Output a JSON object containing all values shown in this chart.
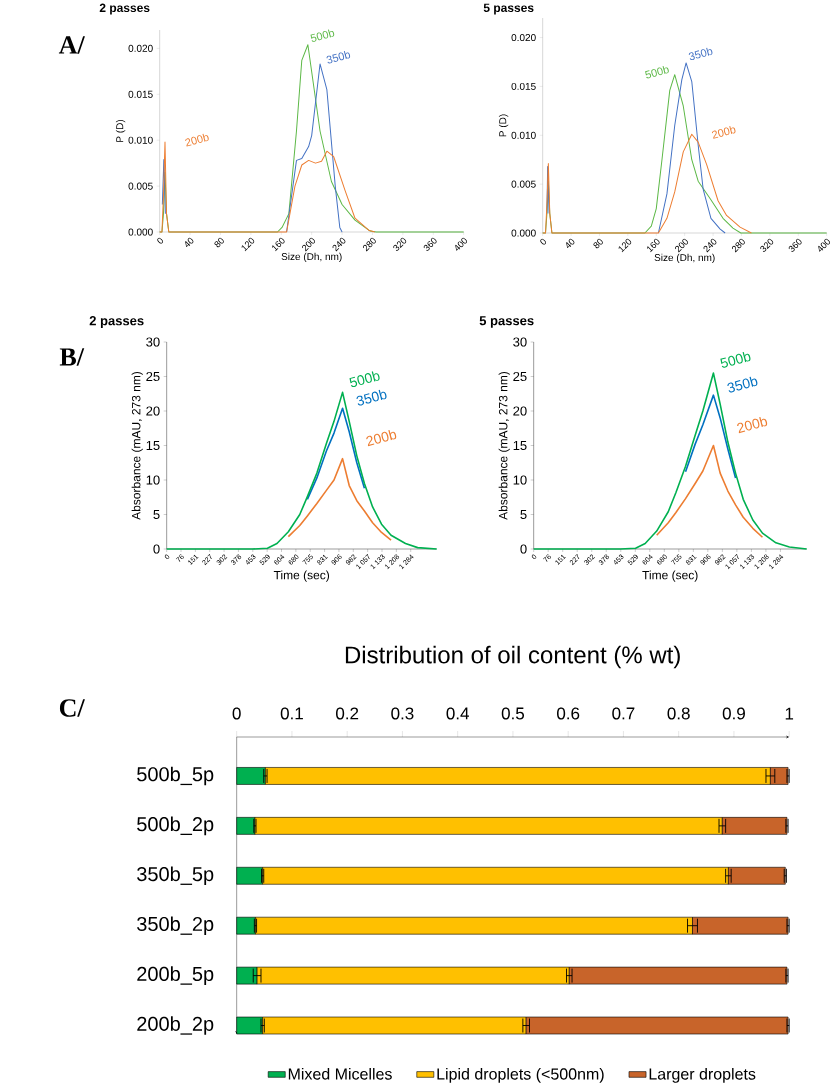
{
  "chart_data": [
    {
      "type": "line",
      "title": "2 passes",
      "xlabel": "Size (Dh, nm)",
      "ylabel": "P (D)",
      "annotations": [
        "A/"
      ],
      "xlim": [
        0,
        400
      ],
      "ylim": [
        0,
        0.022
      ],
      "xticks": [
        0,
        40,
        80,
        120,
        160,
        200,
        240,
        280,
        320,
        360,
        400
      ],
      "yticks": [
        {
          "value": 0,
          "label": "0.000"
        },
        {
          "value": 0.005,
          "label": "0.005"
        },
        {
          "value": 0.01,
          "label": "0.010"
        },
        {
          "value": 0.015,
          "label": "0.015"
        },
        {
          "value": 0.02,
          "label": "0.020"
        }
      ],
      "series": [
        {
          "name": "500b",
          "color": "#5cb846",
          "x": [
            0,
            3,
            5,
            7,
            9,
            12,
            155,
            161,
            170,
            180,
            187,
            195,
            211,
            226,
            240,
            257,
            277,
            285,
            400
          ],
          "values": [
            0,
            0,
            0.002,
            0.0065,
            0.002,
            0,
            0,
            0.0005,
            0.002,
            0.011,
            0.0187,
            0.0204,
            0.011,
            0.0055,
            0.003,
            0.0013,
            0.0001,
            0,
            0
          ]
        },
        {
          "name": "350b",
          "color": "#4472c4",
          "x": [
            3.5,
            5.5,
            7.5,
            100,
            167,
            180,
            187,
            196,
            200,
            211,
            220,
            231,
            237,
            240
          ],
          "values": [
            0.003,
            0.0079,
            0.002,
            null,
            0,
            0.0078,
            0.008,
            0.0093,
            0.0105,
            0.0183,
            0.0155,
            0.005,
            0.0005,
            0
          ]
        },
        {
          "name": "200b",
          "color": "#ed7d31",
          "x": [
            0,
            3,
            5,
            7,
            9,
            12,
            160,
            167,
            178,
            187,
            196,
            205,
            213,
            220,
            229,
            244,
            257,
            275,
            283
          ],
          "values": [
            0,
            0,
            0.004,
            0.0098,
            0.002,
            0,
            0,
            0,
            0.005,
            0.0073,
            0.0078,
            0.0075,
            0.0077,
            0.0088,
            0.0082,
            0.0045,
            0.0015,
            0.0002,
            0
          ]
        }
      ]
    },
    {
      "type": "line",
      "title": "5 passes",
      "xlabel": "Size (Dh, nm)",
      "ylabel": "P (D)",
      "xlim": [
        0,
        400
      ],
      "ylim": [
        0,
        0.022
      ],
      "xticks": [
        0,
        40,
        80,
        120,
        160,
        200,
        240,
        280,
        320,
        360,
        400
      ],
      "yticks": [
        {
          "value": 0,
          "label": "0.000"
        },
        {
          "value": 0.005,
          "label": "0.005"
        },
        {
          "value": 0.01,
          "label": "0.010"
        },
        {
          "value": 0.015,
          "label": "0.015"
        },
        {
          "value": 0.02,
          "label": "0.020"
        }
      ],
      "series": [
        {
          "name": "500b",
          "color": "#5cb846",
          "x": [
            0,
            4,
            6,
            8,
            10,
            13,
            140,
            144,
            153,
            160,
            168,
            179,
            186,
            198,
            210,
            219,
            236,
            254,
            268,
            279,
            400
          ],
          "values": [
            0,
            0,
            0.002,
            0.0053,
            0.002,
            0,
            0,
            0,
            0.0007,
            0.0025,
            0.0075,
            0.0146,
            0.0162,
            0.013,
            0.0075,
            0.0053,
            0.0035,
            0.0015,
            0.0005,
            0,
            0
          ]
        },
        {
          "name": "350b",
          "color": "#4472c4",
          "x": [
            6,
            7,
            9,
            100,
            163,
            175,
            186,
            196,
            202,
            210,
            219,
            226,
            237,
            250,
            257
          ],
          "values": [
            0.002,
            0.0068,
            0.002,
            null,
            0,
            0.004,
            0.011,
            0.0157,
            0.0174,
            0.0155,
            0.009,
            0.0045,
            0.0015,
            0.0004,
            0
          ]
        },
        {
          "name": "200b",
          "color": "#ed7d31",
          "x": [
            0,
            4,
            6,
            8,
            10,
            13,
            160,
            163,
            175,
            186,
            198,
            210,
            219,
            231,
            247,
            259,
            278,
            294
          ],
          "values": [
            0,
            0,
            0.003,
            0.0071,
            0.002,
            0,
            0,
            0,
            0.0015,
            0.0042,
            0.0083,
            0.0101,
            0.0093,
            0.007,
            0.0033,
            0.0018,
            0.0006,
            0
          ]
        }
      ]
    },
    {
      "type": "line",
      "title": "2 passes",
      "xlabel": "Time (sec)",
      "ylabel": "Absorbance (mAU, 273 nm)",
      "annotations": [
        "B/"
      ],
      "xlim": [
        0,
        1420
      ],
      "ylim": [
        0,
        30
      ],
      "xticks": [
        {
          "value": 0,
          "label": "0"
        },
        {
          "value": 75.5,
          "label": "76"
        },
        {
          "value": 151,
          "label": "151"
        },
        {
          "value": 226.5,
          "label": "227"
        },
        {
          "value": 302,
          "label": "302"
        },
        {
          "value": 377.5,
          "label": "378"
        },
        {
          "value": 453,
          "label": "453"
        },
        {
          "value": 528.5,
          "label": "529"
        },
        {
          "value": 604,
          "label": "604"
        },
        {
          "value": 679.5,
          "label": "680"
        },
        {
          "value": 755,
          "label": "755"
        },
        {
          "value": 830.5,
          "label": "831"
        },
        {
          "value": 906,
          "label": "906"
        },
        {
          "value": 981.5,
          "label": "982"
        },
        {
          "value": 1057,
          "label": "1 057"
        },
        {
          "value": 1132.5,
          "label": "1 133"
        },
        {
          "value": 1208,
          "label": "1 208"
        },
        {
          "value": 1283.5,
          "label": "1 284"
        }
      ],
      "yticks": [
        0,
        5,
        10,
        15,
        20,
        25,
        30
      ],
      "series": [
        {
          "name": "200b",
          "color": "#ed7d31",
          "x": [
            640,
            700,
            740,
            790,
            840,
            880,
            925,
            960,
            1000,
            1040,
            1083,
            1130,
            1180
          ],
          "values": [
            1.8,
            3.4,
            4.8,
            6.6,
            8.5,
            10,
            13.1,
            9.2,
            7,
            5.5,
            3.8,
            2.4,
            1.3
          ]
        },
        {
          "name": "350b",
          "color": "#0070c0",
          "x": [
            740,
            790,
            840,
            880,
            925,
            960,
            1000,
            1040
          ],
          "values": [
            7.2,
            10.3,
            14.2,
            16.8,
            20.4,
            17,
            12.5,
            8.8
          ]
        },
        {
          "name": "500b",
          "color": "#00b050",
          "x": [
            0,
            450,
            530,
            580,
            640,
            700,
            740,
            790,
            840,
            880,
            925,
            960,
            1000,
            1040,
            1083,
            1130,
            1180,
            1256,
            1320,
            1420
          ],
          "values": [
            0,
            0,
            0.1,
            0.8,
            2.5,
            5,
            7.6,
            11,
            15.3,
            18.5,
            22.7,
            18.5,
            13.5,
            9.5,
            6.1,
            3.6,
            2,
            0.8,
            0.2,
            0
          ]
        }
      ]
    },
    {
      "type": "line",
      "title": "5 passes",
      "xlabel": "Time (sec)",
      "ylabel": "Absorbance (mAU, 273 nm)",
      "xlim": [
        0,
        1420
      ],
      "ylim": [
        0,
        30
      ],
      "xticks": [
        {
          "value": 0,
          "label": "0"
        },
        {
          "value": 75.5,
          "label": "76"
        },
        {
          "value": 151,
          "label": "151"
        },
        {
          "value": 226.5,
          "label": "227"
        },
        {
          "value": 302,
          "label": "302"
        },
        {
          "value": 377.5,
          "label": "378"
        },
        {
          "value": 453,
          "label": "453"
        },
        {
          "value": 528.5,
          "label": "529"
        },
        {
          "value": 604,
          "label": "604"
        },
        {
          "value": 679.5,
          "label": "680"
        },
        {
          "value": 755,
          "label": "755"
        },
        {
          "value": 830.5,
          "label": "831"
        },
        {
          "value": 906,
          "label": "906"
        },
        {
          "value": 981.5,
          "label": "982"
        },
        {
          "value": 1057,
          "label": "1 057"
        },
        {
          "value": 1132.5,
          "label": "1 133"
        },
        {
          "value": 1208,
          "label": "1 208"
        },
        {
          "value": 1283.5,
          "label": "1 284"
        }
      ],
      "yticks": [
        0,
        5,
        10,
        15,
        20,
        25,
        30
      ],
      "series": [
        {
          "name": "200b",
          "color": "#ed7d31",
          "x": [
            640,
            700,
            740,
            790,
            840,
            880,
            935,
            970,
            1010,
            1050,
            1090,
            1140,
            1190
          ],
          "values": [
            2,
            3.8,
            5.3,
            7.3,
            9.5,
            11.3,
            15,
            11,
            8.4,
            6.4,
            4.6,
            3,
            1.7
          ]
        },
        {
          "name": "350b",
          "color": "#0070c0",
          "x": [
            790,
            840,
            880,
            935,
            970,
            1010,
            1050
          ],
          "values": [
            11.2,
            15.2,
            18,
            22.3,
            19,
            14.5,
            10.3
          ]
        },
        {
          "name": "500b",
          "color": "#00b050",
          "x": [
            0,
            450,
            530,
            580,
            640,
            700,
            740,
            790,
            840,
            880,
            935,
            970,
            1010,
            1050,
            1090,
            1140,
            1190,
            1260,
            1330,
            1420
          ],
          "values": [
            0,
            0,
            0.1,
            0.8,
            2.6,
            5.4,
            8.2,
            12,
            16.5,
            20,
            25.5,
            21,
            15.5,
            11,
            7.2,
            4.2,
            2.3,
            0.9,
            0.3,
            0
          ]
        }
      ]
    },
    {
      "type": "bar",
      "orientation": "horizontal",
      "stacked": true,
      "title": "Distribution of oil content (% wt)",
      "annotations": [
        "C/"
      ],
      "categories": [
        "500b_5p",
        "500b_2p",
        "350b_5p",
        "350b_2p",
        "200b_5p",
        "200b_2p"
      ],
      "xlim": [
        0,
        1
      ],
      "xticks": [
        0,
        0.1,
        0.2,
        0.3,
        0.4,
        0.5,
        0.6,
        0.7,
        0.8,
        0.9,
        1
      ],
      "legend": "bottom",
      "series": [
        {
          "name": "Mixed Micelles",
          "color": "#00b050",
          "values": [
            0.052,
            0.033,
            0.047,
            0.034,
            0.037,
            0.047
          ],
          "errors": [
            0.003,
            0.002,
            0.002,
            0.002,
            0.007,
            0.003
          ]
        },
        {
          "name": "Lipid droplets (<500nm)",
          "color": "#ffc000",
          "values": [
            0.914,
            0.846,
            0.843,
            0.791,
            0.565,
            0.477
          ],
          "errors": [
            0.008,
            0.006,
            0.005,
            0.009,
            0.005,
            0.006
          ]
        },
        {
          "name": "Larger droplets",
          "color": "#c8642a",
          "values": [
            0.032,
            0.117,
            0.103,
            0.173,
            0.394,
            0.474
          ],
          "errors": [
            0.002,
            0.002,
            0.002,
            0.002,
            0.002,
            0.002
          ]
        }
      ]
    }
  ]
}
